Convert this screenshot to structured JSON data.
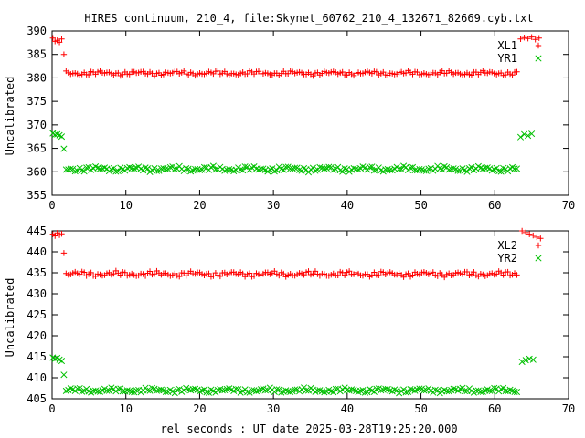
{
  "title": "HIRES continuum, 210_4, file:Skynet_60762_210_4_132671_82669.cyb.txt",
  "xlabel": "rel seconds : UT date 2025-03-28T19:25:20.000",
  "colors": {
    "red": "#ff0000",
    "green": "#00c000"
  },
  "chart_data": [
    {
      "type": "scatter",
      "ylabel": "Uncalibrated",
      "xlim": [
        0,
        70
      ],
      "ylim": [
        355,
        390
      ],
      "xticks": [
        0,
        10,
        20,
        30,
        40,
        50,
        60,
        70
      ],
      "yticks": [
        355,
        360,
        365,
        370,
        375,
        380,
        385,
        390
      ],
      "legend_placement": "top-right",
      "grid": false,
      "series": [
        {
          "name": "XL1",
          "marker": "plus",
          "color": "#ff0000",
          "segments": [
            {
              "x": [
                0.1,
                0.4,
                0.7,
                1.0,
                1.3,
                1.6
              ],
              "y": [
                388.5,
                387.8,
                388.0,
                387.6,
                388.3,
                385.0
              ]
            },
            {
              "x_range": [
                1.9,
                63.0
              ],
              "base": 381.0,
              "amp": 0.6,
              "count": 200
            },
            {
              "x": [
                63.5,
                64.0,
                64.5,
                65.0,
                65.5,
                66.0
              ],
              "y": [
                388.3,
                388.6,
                388.4,
                388.7,
                388.2,
                388.5
              ]
            }
          ]
        },
        {
          "name": "YR1",
          "marker": "x",
          "color": "#00c000",
          "segments": [
            {
              "x": [
                0.1,
                0.4,
                0.7,
                1.0,
                1.3,
                1.6
              ],
              "y": [
                368.2,
                367.9,
                368.0,
                367.8,
                367.5,
                364.9
              ]
            },
            {
              "x_range": [
                1.9,
                63.0
              ],
              "base": 360.6,
              "amp": 0.7,
              "count": 200
            },
            {
              "x": [
                63.5,
                64.0,
                64.5,
                65.0
              ],
              "y": [
                367.4,
                368.0,
                367.7,
                368.1
              ]
            }
          ]
        }
      ]
    },
    {
      "type": "scatter",
      "ylabel": "Uncalibrated",
      "xlim": [
        0,
        70
      ],
      "ylim": [
        405,
        445
      ],
      "xticks": [
        0,
        10,
        20,
        30,
        40,
        50,
        60,
        70
      ],
      "yticks": [
        405,
        410,
        415,
        420,
        425,
        430,
        435,
        440,
        445
      ],
      "legend_placement": "top-right",
      "grid": false,
      "series": [
        {
          "name": "XL2",
          "marker": "plus",
          "color": "#ff0000",
          "segments": [
            {
              "x": [
                0.1,
                0.4,
                0.7,
                1.0,
                1.3,
                1.6
              ],
              "y": [
                444.2,
                443.8,
                444.5,
                444.0,
                444.3,
                439.7
              ]
            },
            {
              "x_range": [
                1.9,
                63.0
              ],
              "base": 434.7,
              "amp": 0.8,
              "count": 200
            },
            {
              "x": [
                63.7,
                64.2,
                64.7,
                65.2,
                65.7,
                66.2
              ],
              "y": [
                445.0,
                444.6,
                444.2,
                443.9,
                443.5,
                443.2
              ]
            }
          ]
        },
        {
          "name": "YR2",
          "marker": "x",
          "color": "#00c000",
          "segments": [
            {
              "x": [
                0.1,
                0.4,
                0.7,
                1.0,
                1.3,
                1.6
              ],
              "y": [
                414.8,
                414.5,
                414.7,
                414.3,
                414.0,
                410.7
              ]
            },
            {
              "x_range": [
                1.9,
                63.0
              ],
              "base": 407.0,
              "amp": 0.7,
              "count": 200
            },
            {
              "x": [
                63.7,
                64.2,
                64.7,
                65.2
              ],
              "y": [
                413.8,
                414.2,
                414.5,
                414.3
              ]
            }
          ]
        }
      ]
    }
  ]
}
